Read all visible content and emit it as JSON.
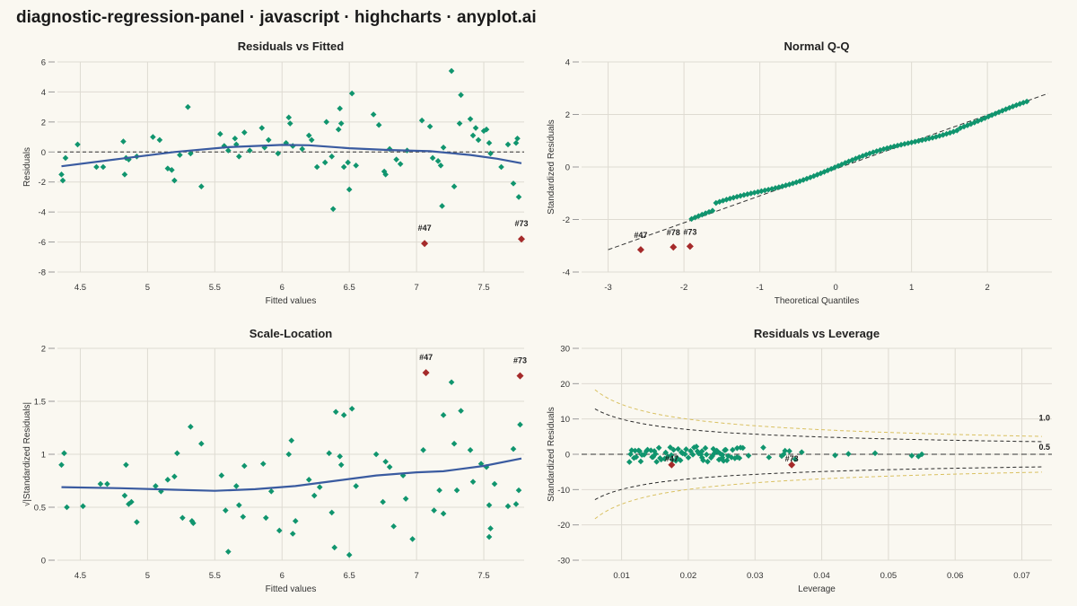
{
  "page": {
    "title": "diagnostic-regression-panel · javascript · highcharts · anyplot.ai"
  },
  "chart_data": [
    {
      "type": "scatter",
      "title": "Residuals vs Fitted",
      "xlabel": "Fitted values",
      "ylabel": "Residuals",
      "xlim": [
        4.33,
        7.8
      ],
      "ylim": [
        -8,
        6
      ],
      "xticks": [
        4.5,
        5,
        5.5,
        6,
        6.5,
        7,
        7.5
      ],
      "yticks": [
        -8,
        -6,
        -4,
        -2,
        0,
        2,
        4,
        6
      ],
      "grid": true,
      "reference_line": 0,
      "points": [
        [
          4.36,
          -1.5
        ],
        [
          4.37,
          -1.9
        ],
        [
          4.39,
          -0.4
        ],
        [
          4.48,
          0.5
        ],
        [
          4.62,
          -1.0
        ],
        [
          4.67,
          -1.0
        ],
        [
          4.82,
          0.7
        ],
        [
          4.83,
          -1.5
        ],
        [
          4.84,
          -0.4
        ],
        [
          4.86,
          -0.5
        ],
        [
          4.92,
          -0.3
        ],
        [
          5.04,
          1.0
        ],
        [
          5.09,
          0.8
        ],
        [
          5.15,
          -1.1
        ],
        [
          5.18,
          -1.2
        ],
        [
          5.2,
          -1.9
        ],
        [
          5.24,
          -0.2
        ],
        [
          5.3,
          3.0
        ],
        [
          5.32,
          -0.1
        ],
        [
          5.4,
          -2.3
        ],
        [
          5.54,
          1.2
        ],
        [
          5.57,
          0.4
        ],
        [
          5.6,
          0.1
        ],
        [
          5.65,
          0.9
        ],
        [
          5.66,
          0.5
        ],
        [
          5.68,
          -0.3
        ],
        [
          5.72,
          1.3
        ],
        [
          5.76,
          0.1
        ],
        [
          5.85,
          1.6
        ],
        [
          5.87,
          0.3
        ],
        [
          5.9,
          0.8
        ],
        [
          5.97,
          -0.1
        ],
        [
          6.03,
          0.6
        ],
        [
          6.05,
          2.3
        ],
        [
          6.06,
          1.9
        ],
        [
          6.08,
          0.4
        ],
        [
          6.15,
          0.2
        ],
        [
          6.2,
          1.1
        ],
        [
          6.22,
          0.8
        ],
        [
          6.26,
          -1.0
        ],
        [
          6.32,
          -0.7
        ],
        [
          6.33,
          2.0
        ],
        [
          6.37,
          -0.3
        ],
        [
          6.38,
          -3.8
        ],
        [
          6.42,
          1.5
        ],
        [
          6.43,
          2.9
        ],
        [
          6.44,
          1.9
        ],
        [
          6.46,
          -1.0
        ],
        [
          6.49,
          -0.7
        ],
        [
          6.5,
          -2.5
        ],
        [
          6.52,
          3.9
        ],
        [
          6.55,
          -0.9
        ],
        [
          6.68,
          2.5
        ],
        [
          6.72,
          1.8
        ],
        [
          6.76,
          -1.3
        ],
        [
          6.77,
          -1.5
        ],
        [
          6.8,
          0.2
        ],
        [
          6.85,
          -0.5
        ],
        [
          6.88,
          -0.8
        ],
        [
          6.93,
          0.1
        ],
        [
          7.04,
          2.1
        ],
        [
          7.1,
          1.7
        ],
        [
          7.12,
          -0.4
        ],
        [
          7.16,
          -0.6
        ],
        [
          7.18,
          -0.9
        ],
        [
          7.19,
          -3.6
        ],
        [
          7.2,
          0.3
        ],
        [
          7.26,
          5.4
        ],
        [
          7.28,
          -2.3
        ],
        [
          7.32,
          1.9
        ],
        [
          7.33,
          3.8
        ],
        [
          7.4,
          2.2
        ],
        [
          7.42,
          1.1
        ],
        [
          7.44,
          1.6
        ],
        [
          7.46,
          0.8
        ],
        [
          7.5,
          1.4
        ],
        [
          7.52,
          1.5
        ],
        [
          7.54,
          0.6
        ],
        [
          7.55,
          -0.1
        ],
        [
          7.63,
          -1.0
        ],
        [
          7.68,
          0.5
        ],
        [
          7.72,
          -2.1
        ],
        [
          7.74,
          0.6
        ],
        [
          7.75,
          0.9
        ],
        [
          7.76,
          -3.0
        ]
      ],
      "smoother": [
        [
          4.36,
          -0.95
        ],
        [
          4.8,
          -0.45
        ],
        [
          5.2,
          0.0
        ],
        [
          5.6,
          0.32
        ],
        [
          6.0,
          0.47
        ],
        [
          6.2,
          0.45
        ],
        [
          6.5,
          0.25
        ],
        [
          6.8,
          0.13
        ],
        [
          7.1,
          0.05
        ],
        [
          7.4,
          -0.2
        ],
        [
          7.6,
          -0.45
        ],
        [
          7.78,
          -0.75
        ]
      ],
      "outliers": [
        {
          "label": "#47",
          "x": 7.06,
          "y": -6.1
        },
        {
          "label": "#73",
          "x": 7.78,
          "y": -5.8
        }
      ]
    },
    {
      "type": "scatter",
      "title": "Normal Q-Q",
      "xlabel": "Theoretical Quantiles",
      "ylabel": "Standardized Residuals",
      "xlim": [
        -3.35,
        2.85
      ],
      "ylim": [
        -4,
        4
      ],
      "xticks": [
        -3,
        -2,
        -1,
        0,
        1,
        2
      ],
      "yticks": [
        -4,
        -2,
        0,
        2,
        4
      ],
      "grid": true,
      "reference_line_points": [
        [
          -3.0,
          -3.15
        ],
        [
          2.8,
          2.8
        ]
      ],
      "outliers": [
        {
          "label": "#47",
          "x": -2.57,
          "y": -3.15
        },
        {
          "label": "#78",
          "x": -2.14,
          "y": -3.05
        },
        {
          "label": "#73",
          "x": -1.92,
          "y": -3.02
        }
      ]
    },
    {
      "type": "scatter",
      "title": "Scale-Location",
      "xlabel": "Fitted values",
      "ylabel": "√|Standardized Residuals|",
      "xlim": [
        4.33,
        7.8
      ],
      "ylim": [
        0,
        2
      ],
      "xticks": [
        4.5,
        5,
        5.5,
        6,
        6.5,
        7,
        7.5
      ],
      "yticks": [
        0,
        0.5,
        1,
        1.5,
        2
      ],
      "grid": true,
      "points": [
        [
          4.36,
          0.9
        ],
        [
          4.38,
          1.01
        ],
        [
          4.4,
          0.5
        ],
        [
          4.52,
          0.51
        ],
        [
          4.65,
          0.72
        ],
        [
          4.7,
          0.72
        ],
        [
          4.83,
          0.61
        ],
        [
          4.84,
          0.9
        ],
        [
          4.86,
          0.53
        ],
        [
          4.88,
          0.55
        ],
        [
          4.92,
          0.36
        ],
        [
          5.06,
          0.7
        ],
        [
          5.1,
          0.65
        ],
        [
          5.15,
          0.76
        ],
        [
          5.2,
          0.79
        ],
        [
          5.22,
          1.01
        ],
        [
          5.26,
          0.4
        ],
        [
          5.32,
          1.26
        ],
        [
          5.33,
          0.37
        ],
        [
          5.34,
          0.35
        ],
        [
          5.4,
          1.1
        ],
        [
          5.55,
          0.8
        ],
        [
          5.58,
          0.47
        ],
        [
          5.6,
          0.08
        ],
        [
          5.66,
          0.7
        ],
        [
          5.68,
          0.52
        ],
        [
          5.72,
          0.89
        ],
        [
          5.71,
          0.41
        ],
        [
          5.86,
          0.91
        ],
        [
          5.88,
          0.4
        ],
        [
          5.92,
          0.65
        ],
        [
          5.98,
          0.28
        ],
        [
          6.05,
          1.0
        ],
        [
          6.07,
          1.13
        ],
        [
          6.08,
          0.25
        ],
        [
          6.1,
          0.37
        ],
        [
          6.2,
          0.76
        ],
        [
          6.24,
          0.61
        ],
        [
          6.28,
          0.69
        ],
        [
          6.35,
          1.01
        ],
        [
          6.37,
          0.45
        ],
        [
          6.39,
          0.12
        ],
        [
          6.4,
          1.4
        ],
        [
          6.43,
          0.98
        ],
        [
          6.44,
          0.9
        ],
        [
          6.46,
          1.37
        ],
        [
          6.5,
          0.05
        ],
        [
          6.52,
          1.43
        ],
        [
          6.55,
          0.7
        ],
        [
          6.7,
          1.0
        ],
        [
          6.75,
          0.55
        ],
        [
          6.77,
          0.93
        ],
        [
          6.8,
          0.88
        ],
        [
          6.83,
          0.32
        ],
        [
          6.9,
          0.8
        ],
        [
          6.92,
          0.58
        ],
        [
          6.97,
          0.2
        ],
        [
          7.05,
          1.04
        ],
        [
          7.13,
          0.47
        ],
        [
          7.17,
          0.66
        ],
        [
          7.2,
          0.44
        ],
        [
          7.2,
          1.37
        ],
        [
          7.26,
          1.68
        ],
        [
          7.28,
          1.1
        ],
        [
          7.3,
          0.66
        ],
        [
          7.33,
          1.41
        ],
        [
          7.4,
          1.04
        ],
        [
          7.42,
          0.74
        ],
        [
          7.48,
          0.91
        ],
        [
          7.52,
          0.88
        ],
        [
          7.54,
          0.22
        ],
        [
          7.55,
          0.3
        ],
        [
          7.54,
          0.52
        ],
        [
          7.58,
          0.72
        ],
        [
          7.68,
          0.51
        ],
        [
          7.72,
          1.05
        ],
        [
          7.74,
          0.53
        ],
        [
          7.76,
          0.66
        ],
        [
          7.77,
          1.28
        ]
      ],
      "smoother": [
        [
          4.36,
          0.69
        ],
        [
          4.8,
          0.68
        ],
        [
          5.2,
          0.665
        ],
        [
          5.5,
          0.655
        ],
        [
          5.8,
          0.67
        ],
        [
          6.1,
          0.7
        ],
        [
          6.4,
          0.75
        ],
        [
          6.7,
          0.8
        ],
        [
          7.0,
          0.83
        ],
        [
          7.2,
          0.84
        ],
        [
          7.5,
          0.89
        ],
        [
          7.78,
          0.96
        ]
      ],
      "outliers": [
        {
          "label": "#47",
          "x": 7.07,
          "y": 1.77
        },
        {
          "label": "#73",
          "x": 7.77,
          "y": 1.74
        }
      ]
    },
    {
      "type": "scatter",
      "title": "Residuals vs Leverage",
      "xlabel": "Leverage",
      "ylabel": "Standardized Residuals",
      "xlim": [
        0.004,
        0.0745
      ],
      "ylim": [
        -30,
        30
      ],
      "xticks": [
        0.01,
        0.02,
        0.03,
        0.04,
        0.05,
        0.06,
        0.07
      ],
      "yticks": [
        -30,
        -20,
        -10,
        0,
        10,
        20,
        30
      ],
      "grid": true,
      "reference_line": 0,
      "contour_labels": [
        "1.0",
        "0.5"
      ],
      "outliers": [
        {
          "label": "#47",
          "x": 0.0175,
          "y": -3.0
        },
        {
          "label": "#73",
          "x": 0.0355,
          "y": -3.0
        }
      ]
    }
  ],
  "colors": {
    "points": "#10956E",
    "outliers": "#A52A2A",
    "smoother": "#3A5BA0",
    "cook_1": "#2a2a2a",
    "cook_05": "#D9C060",
    "grid": "#DEDBD2"
  }
}
